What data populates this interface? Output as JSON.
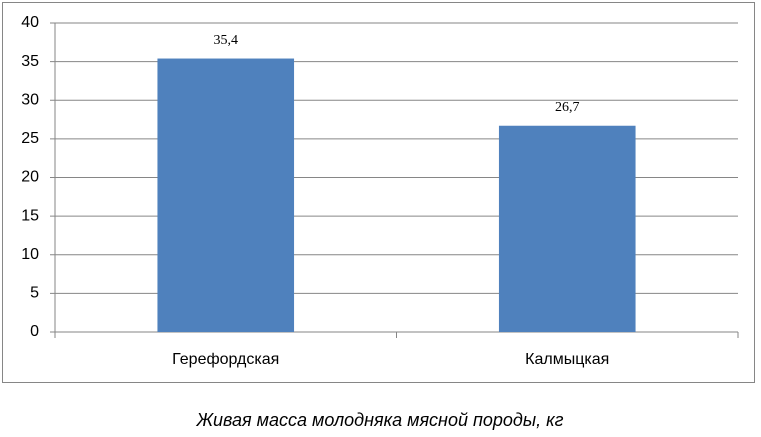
{
  "chart_data": {
    "type": "bar",
    "title": "Живая масса молодняка мясной породы, кг",
    "categories": [
      "Герефордская",
      "Калмыцкая"
    ],
    "values": [
      35.4,
      26.7
    ],
    "value_labels": [
      "35,4",
      "26,7"
    ],
    "color": "#4f81bd",
    "ylim": [
      0,
      40
    ],
    "yticks": [
      0,
      5,
      10,
      15,
      20,
      25,
      30,
      35,
      40
    ],
    "grid": true
  }
}
